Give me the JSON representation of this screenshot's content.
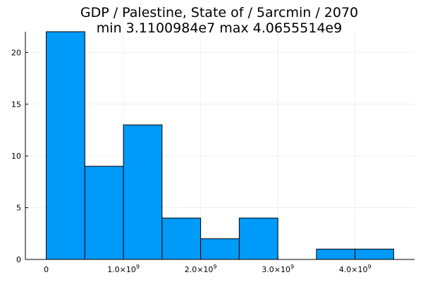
{
  "chart_data": {
    "type": "bar",
    "title_lines": [
      "GDP / Palestine, State of / 5arcmin / 2070",
      "min 3.1100984e7  max 4.0655514e9"
    ],
    "xlabel": "",
    "ylabel": "",
    "bin_width": 500000000,
    "bins": [
      {
        "x0": 0,
        "x1": 500000000,
        "count": 22
      },
      {
        "x0": 500000000,
        "x1": 1000000000,
        "count": 9
      },
      {
        "x0": 1000000000,
        "x1": 1500000000,
        "count": 13
      },
      {
        "x0": 1500000000,
        "x1": 2000000000,
        "count": 4
      },
      {
        "x0": 2000000000,
        "x1": 2500000000,
        "count": 2
      },
      {
        "x0": 2500000000,
        "x1": 3000000000,
        "count": 4
      },
      {
        "x0": 3000000000,
        "x1": 3500000000,
        "count": 0
      },
      {
        "x0": 3500000000,
        "x1": 4000000000,
        "count": 1
      },
      {
        "x0": 4000000000,
        "x1": 4500000000,
        "count": 1
      }
    ],
    "xlim": [
      -270000000,
      4770000000
    ],
    "ylim": [
      0,
      22
    ],
    "x_ticks": [
      {
        "value": 0,
        "mantissa": "0",
        "exp": ""
      },
      {
        "value": 1000000000,
        "mantissa": "1.0×10",
        "exp": "9"
      },
      {
        "value": 2000000000,
        "mantissa": "2.0×10",
        "exp": "9"
      },
      {
        "value": 3000000000,
        "mantissa": "3.0×10",
        "exp": "9"
      },
      {
        "value": 4000000000,
        "mantissa": "4.0×10",
        "exp": "9"
      }
    ],
    "y_ticks": [
      0,
      5,
      10,
      15,
      20
    ],
    "grid": true,
    "legend": "none",
    "bar_color": "#009AF9",
    "bar_edge_color": "#000000"
  }
}
